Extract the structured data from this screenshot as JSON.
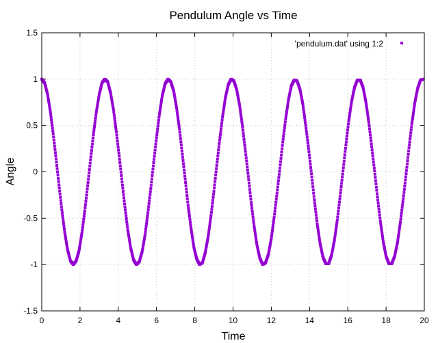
{
  "chart_data": {
    "type": "scatter",
    "title": "Pendulum Angle vs Time",
    "xlabel": "Time",
    "ylabel": "Angle",
    "xlim": [
      0,
      20
    ],
    "ylim": [
      -1.5,
      1.5
    ],
    "xticks": [
      "0",
      "2",
      "4",
      "6",
      "8",
      "10",
      "12",
      "14",
      "16",
      "18",
      "20"
    ],
    "yticks": [
      "-1.5",
      "-1",
      "-0.5",
      "0",
      "0.5",
      "1",
      "1.5"
    ],
    "grid": true,
    "legend_position": "top-right",
    "series": [
      {
        "name": "'pendulum.dat' using 1:2",
        "color": "#9400d3",
        "marker": "square",
        "x": [
          0,
          0.15,
          0.3,
          0.45,
          0.6,
          0.75,
          0.9,
          1.05,
          1.2,
          1.35,
          1.5,
          1.65,
          1.8,
          1.95,
          2.1,
          2.25,
          2.4,
          2.55,
          2.7,
          2.85,
          3,
          3.15,
          3.3,
          3.45,
          3.6,
          3.75,
          3.9,
          4.05,
          4.2,
          4.35,
          4.5,
          4.65,
          4.8,
          4.95,
          5.1,
          5.25,
          5.4,
          5.55,
          5.7,
          5.85,
          6,
          6.15,
          6.3,
          6.45,
          6.6,
          6.75,
          6.9,
          7.05,
          7.2,
          7.35,
          7.5,
          7.65,
          7.8,
          7.95,
          8.1,
          8.25,
          8.4,
          8.55,
          8.7,
          8.85,
          9,
          9.15,
          9.3,
          9.45,
          9.6,
          9.75,
          9.9,
          10.05,
          10.2,
          10.35,
          10.5,
          10.65,
          10.8,
          10.95,
          11.1,
          11.25,
          11.4,
          11.55,
          11.7,
          11.85,
          12,
          12.15,
          12.3,
          12.45,
          12.6,
          12.75,
          12.9,
          13.05,
          13.2,
          13.35,
          13.5,
          13.65,
          13.8,
          13.95,
          14.1,
          14.25,
          14.4,
          14.55,
          14.7,
          14.85,
          15,
          15.15,
          15.3,
          15.45,
          15.6,
          15.75,
          15.9,
          16.05,
          16.2,
          16.35,
          16.5,
          16.65,
          16.8,
          16.95,
          17.1,
          17.25,
          17.4,
          17.55,
          17.7,
          17.85,
          18,
          18.15,
          18.3,
          18.45,
          18.6,
          18.75,
          18.9,
          19.05,
          19.2,
          19.35,
          19.5,
          19.65,
          19.8,
          19.95
        ],
        "y": [
          1,
          0.96,
          0.84,
          0.65,
          0.41,
          0.14,
          -0.14,
          -0.41,
          -0.65,
          -0.84,
          -0.96,
          -1,
          -0.96,
          -0.85,
          -0.66,
          -0.42,
          -0.15,
          0.13,
          0.4,
          0.64,
          0.83,
          0.96,
          1,
          0.97,
          0.85,
          0.67,
          0.43,
          0.17,
          -0.11,
          -0.38,
          -0.63,
          -0.82,
          -0.95,
          -1,
          -0.97,
          -0.86,
          -0.68,
          -0.44,
          -0.18,
          0.1,
          0.37,
          0.62,
          0.82,
          0.95,
          1,
          0.97,
          0.87,
          0.69,
          0.46,
          0.19,
          -0.08,
          -0.36,
          -0.6,
          -0.81,
          -0.94,
          -1,
          -0.98,
          -0.87,
          -0.7,
          -0.47,
          -0.21,
          0.07,
          0.34,
          0.59,
          0.8,
          0.94,
          1,
          0.98,
          0.88,
          0.71,
          0.48,
          0.22,
          -0.05,
          -0.33,
          -0.58,
          -0.79,
          -0.93,
          -1,
          -0.98,
          -0.89,
          -0.72,
          -0.49,
          -0.23,
          0.04,
          0.32,
          0.57,
          0.78,
          0.93,
          0.99,
          0.98,
          0.89,
          0.73,
          0.5,
          0.25,
          -0.02,
          -0.3,
          -0.56,
          -0.77,
          -0.92,
          -0.99,
          -0.99,
          -0.9,
          -0.74,
          -0.52,
          -0.26,
          0.01,
          0.29,
          0.55,
          0.76,
          0.91,
          0.99,
          0.99,
          0.91,
          0.75,
          0.53,
          0.27,
          0.01,
          -0.27,
          -0.53,
          -0.75,
          -0.91,
          -0.99,
          -0.99,
          -0.91,
          -0.76,
          -0.54,
          -0.29,
          -0.02,
          0.26,
          0.52,
          0.74,
          0.9,
          0.99,
          1
        ]
      }
    ]
  }
}
